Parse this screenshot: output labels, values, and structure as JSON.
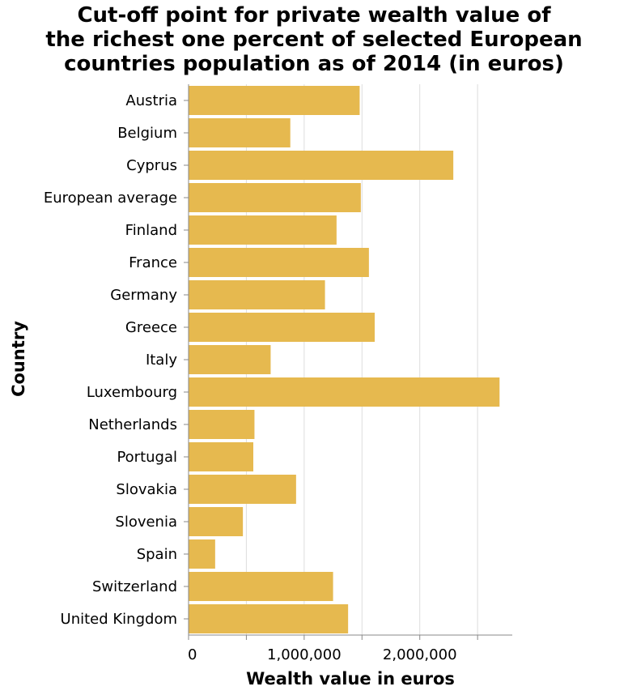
{
  "chart_data": {
    "type": "bar",
    "orientation": "horizontal",
    "title_lines": [
      "Cut-off point for private wealth value of",
      "the richest one percent of selected European",
      "countries population as of 2014 (in euros)"
    ],
    "xlabel": "Wealth value in euros",
    "ylabel": "Country",
    "xlim": [
      0,
      2800000
    ],
    "grid_values": [
      0,
      500000,
      1000000,
      1500000,
      2000000,
      2500000
    ],
    "tick_values": [
      0,
      1000000,
      2000000
    ],
    "tick_labels": [
      "0",
      "1,000,000",
      "2,000,000"
    ],
    "categories": [
      "Austria",
      "Belgium",
      "Cyprus",
      "European average",
      "Finland",
      "France",
      "Germany",
      "Greece",
      "Italy",
      "Luxembourg",
      "Netherlands",
      "Portugal",
      "Slovakia",
      "Slovenia",
      "Spain",
      "Switzerland",
      "United Kingdom"
    ],
    "values": [
      1480000,
      880000,
      2290000,
      1490000,
      1280000,
      1560000,
      1180000,
      1610000,
      710000,
      2690000,
      570000,
      560000,
      930000,
      470000,
      230000,
      1250000,
      1380000
    ],
    "bar_color": "#e6b94f"
  }
}
